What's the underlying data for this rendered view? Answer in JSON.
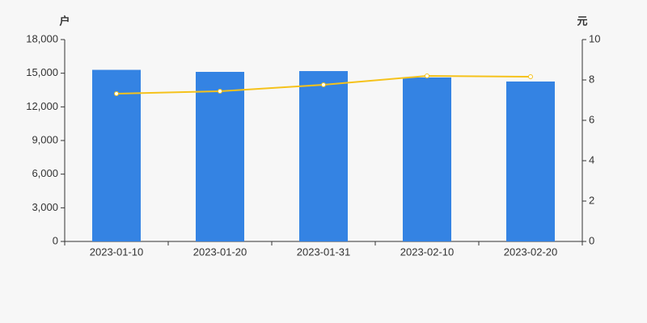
{
  "chart_data": {
    "type": "bar-line",
    "y_unit": "户",
    "y2_unit": "元",
    "categories": [
      "2023-01-10",
      "2023-01-20",
      "2023-01-31",
      "2023-02-10",
      "2023-02-20"
    ],
    "series": [
      {
        "type": "bar",
        "color": "#3483e3",
        "values": [
          15300,
          15120,
          15190,
          14620,
          14260
        ]
      },
      {
        "type": "line",
        "axis": "y2",
        "color": "#f5c21b",
        "values": [
          7.32,
          7.44,
          7.76,
          8.2,
          8.16
        ]
      }
    ],
    "ylim": [
      0,
      18000
    ],
    "yticks": [
      0,
      {
        "value": 3000,
        "label": "3,000"
      },
      {
        "value": 6000,
        "label": "6,000"
      },
      {
        "value": 9000,
        "label": "9,000"
      },
      {
        "value": 12000,
        "label": "12,000"
      },
      {
        "value": 15000,
        "label": "15,000"
      },
      {
        "value": 18000,
        "label": "18,000"
      }
    ],
    "y2lim": [
      0,
      10
    ],
    "y2ticks": [
      0,
      2,
      4,
      6,
      8,
      10
    ]
  }
}
